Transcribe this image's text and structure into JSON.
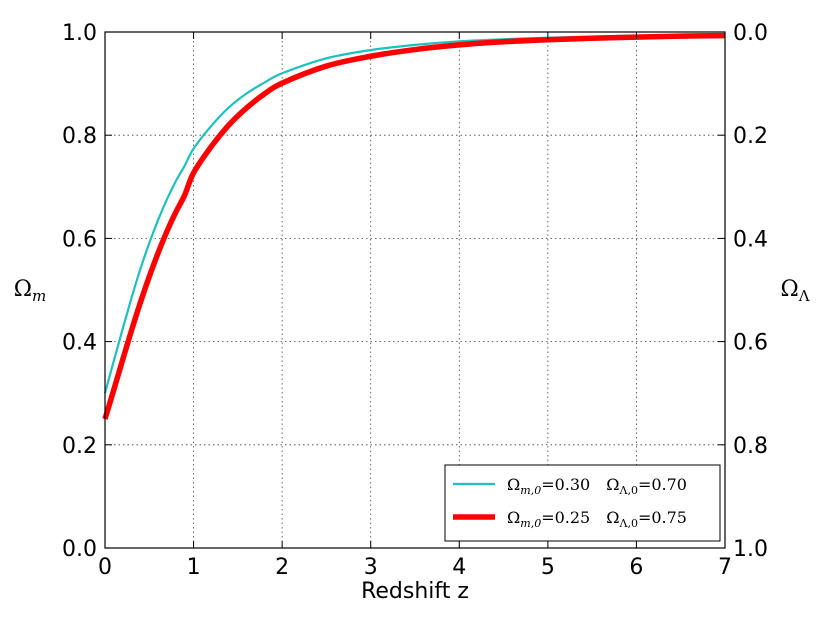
{
  "chart_data": {
    "type": "line",
    "xlabel": "Redshift z",
    "ylabel_left": {
      "symbol": "Ω",
      "sub": "m"
    },
    "ylabel_right": {
      "symbol": "Ω",
      "sub": "Λ"
    },
    "xlim": [
      0,
      7
    ],
    "ylim_left": [
      0.0,
      1.0
    ],
    "ylim_right": [
      1.0,
      0.0
    ],
    "x_ticks": [
      "0",
      "1",
      "2",
      "3",
      "4",
      "5",
      "6",
      "7"
    ],
    "y_ticks_left": [
      "0.0",
      "0.2",
      "0.4",
      "0.6",
      "0.8",
      "1.0"
    ],
    "y_ticks_right": [
      "1.0",
      "0.8",
      "0.6",
      "0.4",
      "0.2",
      "0.0"
    ],
    "grid": true,
    "legend_position": "lower-right",
    "series": [
      {
        "name": "Ωm,0=0.30 ΩΛ,0=0.70",
        "legend": {
          "m_sym": "Ω",
          "m_sub": "m,0",
          "m_val": "=0.30",
          "l_sym": "Ω",
          "l_sub": "Λ,0",
          "l_val": "=0.70"
        },
        "color": "#1fbfbf",
        "line_width": 2.2,
        "x": [
          0,
          0.1,
          0.2,
          0.3,
          0.4,
          0.5,
          0.6,
          0.7,
          0.8,
          0.9,
          1.0,
          1.2,
          1.4,
          1.6,
          1.8,
          2.0,
          2.5,
          3.0,
          3.5,
          4.0,
          4.5,
          5.0,
          5.5,
          6.0,
          6.5,
          7.0
        ],
        "y": [
          0.3,
          0.363,
          0.425,
          0.485,
          0.541,
          0.591,
          0.636,
          0.676,
          0.711,
          0.741,
          0.774,
          0.818,
          0.854,
          0.881,
          0.902,
          0.92,
          0.949,
          0.965,
          0.975,
          0.982,
          0.986,
          0.989,
          0.991,
          0.993,
          0.994,
          0.995
        ]
      },
      {
        "name": "Ωm,0=0.25 ΩΛ,0=0.75",
        "legend": {
          "m_sym": "Ω",
          "m_sub": "m,0",
          "m_val": "=0.25",
          "l_sym": "Ω",
          "l_sub": "Λ,0",
          "l_val": "=0.75"
        },
        "color": "#ff0000",
        "line_width": 5.5,
        "x": [
          0,
          0.1,
          0.2,
          0.3,
          0.4,
          0.5,
          0.6,
          0.7,
          0.8,
          0.9,
          1.0,
          1.2,
          1.4,
          1.6,
          1.8,
          2.0,
          2.5,
          3.0,
          3.5,
          4.0,
          4.5,
          5.0,
          5.5,
          6.0,
          6.5,
          7.0
        ],
        "y": [
          0.25,
          0.307,
          0.365,
          0.422,
          0.476,
          0.526,
          0.572,
          0.614,
          0.651,
          0.684,
          0.727,
          0.778,
          0.82,
          0.853,
          0.88,
          0.901,
          0.934,
          0.953,
          0.966,
          0.975,
          0.981,
          0.985,
          0.988,
          0.99,
          0.992,
          0.993
        ]
      }
    ]
  }
}
